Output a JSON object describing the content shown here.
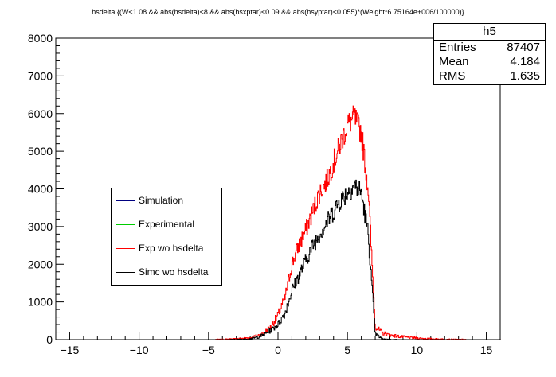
{
  "chart_data": {
    "type": "histogram",
    "title": "hsdelta {(W<1.08 && abs(hsdelta)<8 && abs(hsxptar)<0.09 && abs(hsyptar)<0.055)*(Weight*6.75164e+006/100000)}",
    "xlim": [
      -16,
      16
    ],
    "ylim": [
      0,
      8000
    ],
    "x_ticks": [
      -15,
      -10,
      -5,
      0,
      5,
      10,
      15
    ],
    "y_ticks": [
      0,
      1000,
      2000,
      3000,
      4000,
      5000,
      6000,
      7000,
      8000
    ],
    "x_tick_labels": [
      "−15",
      "−10",
      "−5",
      "0",
      "5",
      "10",
      "15"
    ],
    "y_tick_labels": [
      "0",
      "1000",
      "2000",
      "3000",
      "4000",
      "5000",
      "6000",
      "7000",
      "8000"
    ],
    "grid": false,
    "legend_position": "center-left",
    "series": [
      {
        "name": "Simulation",
        "color": "#000080",
        "x": [],
        "y": []
      },
      {
        "name": "Experimental",
        "color": "#00cc00",
        "x": [],
        "y": []
      },
      {
        "name": "Exp wo hsdelta",
        "color": "#ff0000",
        "x": [
          -4,
          -3,
          -2,
          -1.5,
          -1,
          -0.5,
          0,
          0.5,
          1,
          1.5,
          2,
          2.5,
          3,
          3.5,
          4,
          4.5,
          5,
          5.5,
          6,
          6.5,
          7,
          7.5,
          8,
          9,
          10,
          11,
          12,
          13
        ],
        "y": [
          5,
          20,
          50,
          100,
          180,
          350,
          650,
          1100,
          2000,
          2500,
          2900,
          3400,
          3900,
          4200,
          4700,
          5200,
          5700,
          5900,
          5500,
          4000,
          350,
          180,
          120,
          70,
          40,
          20,
          10,
          5
        ]
      },
      {
        "name": "Simc wo hsdelta",
        "color": "#000000",
        "x": [
          -3,
          -2,
          -1.5,
          -1,
          -0.5,
          0,
          0.5,
          1,
          1.5,
          2,
          2.5,
          3,
          3.5,
          4,
          4.5,
          5,
          5.5,
          6,
          6.5,
          7,
          7.5,
          8
        ],
        "y": [
          3,
          20,
          60,
          130,
          250,
          400,
          700,
          1300,
          1700,
          2100,
          2500,
          2800,
          3100,
          3400,
          3700,
          3900,
          4100,
          3900,
          2800,
          150,
          20,
          3
        ]
      }
    ]
  },
  "stats": {
    "title": "h5",
    "rows": [
      {
        "label": "Entries",
        "value": "87407"
      },
      {
        "label": "Mean",
        "value": "4.184"
      },
      {
        "label": "RMS",
        "value": "1.635"
      }
    ]
  }
}
